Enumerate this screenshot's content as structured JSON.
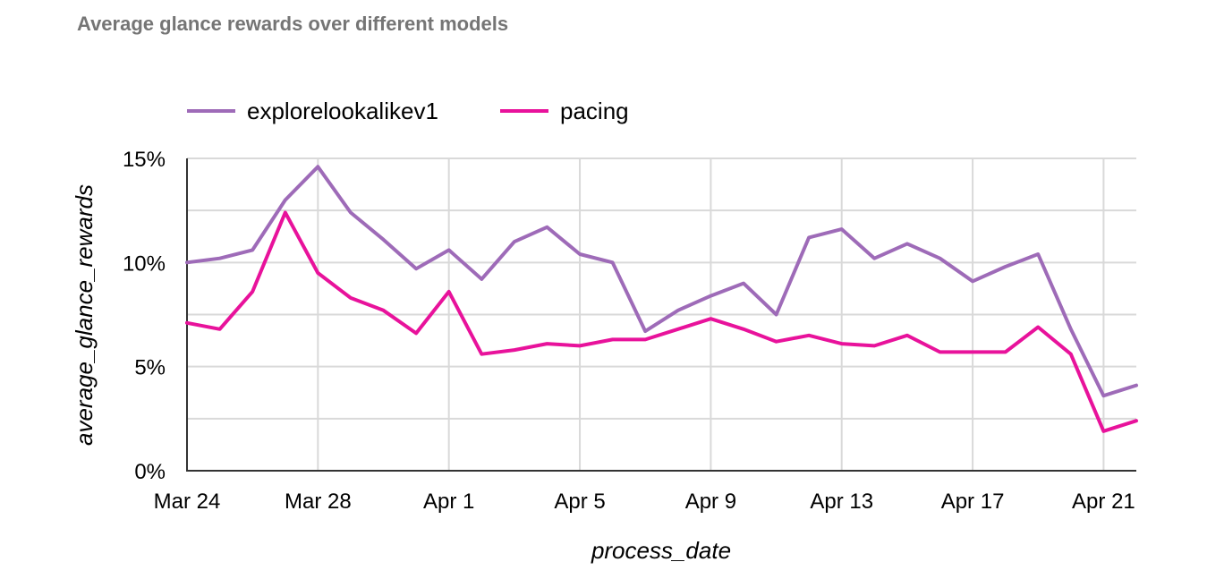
{
  "chart_data": {
    "type": "line",
    "title": "Average glance rewards over different models",
    "xlabel": "process_date",
    "ylabel": "average_glance_rewards",
    "x": [
      "Mar 24",
      "Mar 25",
      "Mar 26",
      "Mar 27",
      "Mar 28",
      "Mar 29",
      "Mar 30",
      "Mar 31",
      "Apr 1",
      "Apr 2",
      "Apr 3",
      "Apr 4",
      "Apr 5",
      "Apr 6",
      "Apr 7",
      "Apr 8",
      "Apr 9",
      "Apr 10",
      "Apr 11",
      "Apr 12",
      "Apr 13",
      "Apr 14",
      "Apr 15",
      "Apr 16",
      "Apr 17",
      "Apr 18",
      "Apr 19",
      "Apr 20",
      "Apr 21",
      "Apr 22"
    ],
    "x_ticks": [
      "Mar 24",
      "Mar 28",
      "Apr 1",
      "Apr 5",
      "Apr 9",
      "Apr 13",
      "Apr 17",
      "Apr 21"
    ],
    "y_ticks": [
      "0%",
      "5%",
      "10%",
      "15%"
    ],
    "ylim": [
      0,
      15
    ],
    "grid": true,
    "legend_position": "top-left",
    "series": [
      {
        "name": "explorelookalikev1",
        "color": "#9E6BB8",
        "values": [
          10.0,
          10.2,
          10.6,
          13.0,
          14.6,
          12.4,
          11.1,
          9.7,
          10.6,
          9.2,
          11.0,
          11.7,
          10.4,
          10.0,
          6.7,
          7.7,
          8.4,
          9.0,
          7.5,
          11.2,
          11.6,
          10.2,
          10.9,
          10.2,
          9.1,
          9.8,
          10.4,
          6.8,
          3.6,
          4.1
        ]
      },
      {
        "name": "pacing",
        "color": "#E8129B",
        "values": [
          7.1,
          6.8,
          8.6,
          12.4,
          9.5,
          8.3,
          7.7,
          6.6,
          8.6,
          5.6,
          5.8,
          6.1,
          6.0,
          6.3,
          6.3,
          6.8,
          7.3,
          6.8,
          6.2,
          6.5,
          6.1,
          6.0,
          6.5,
          5.7,
          5.7,
          5.7,
          6.9,
          5.6,
          1.9,
          2.4
        ]
      }
    ]
  }
}
